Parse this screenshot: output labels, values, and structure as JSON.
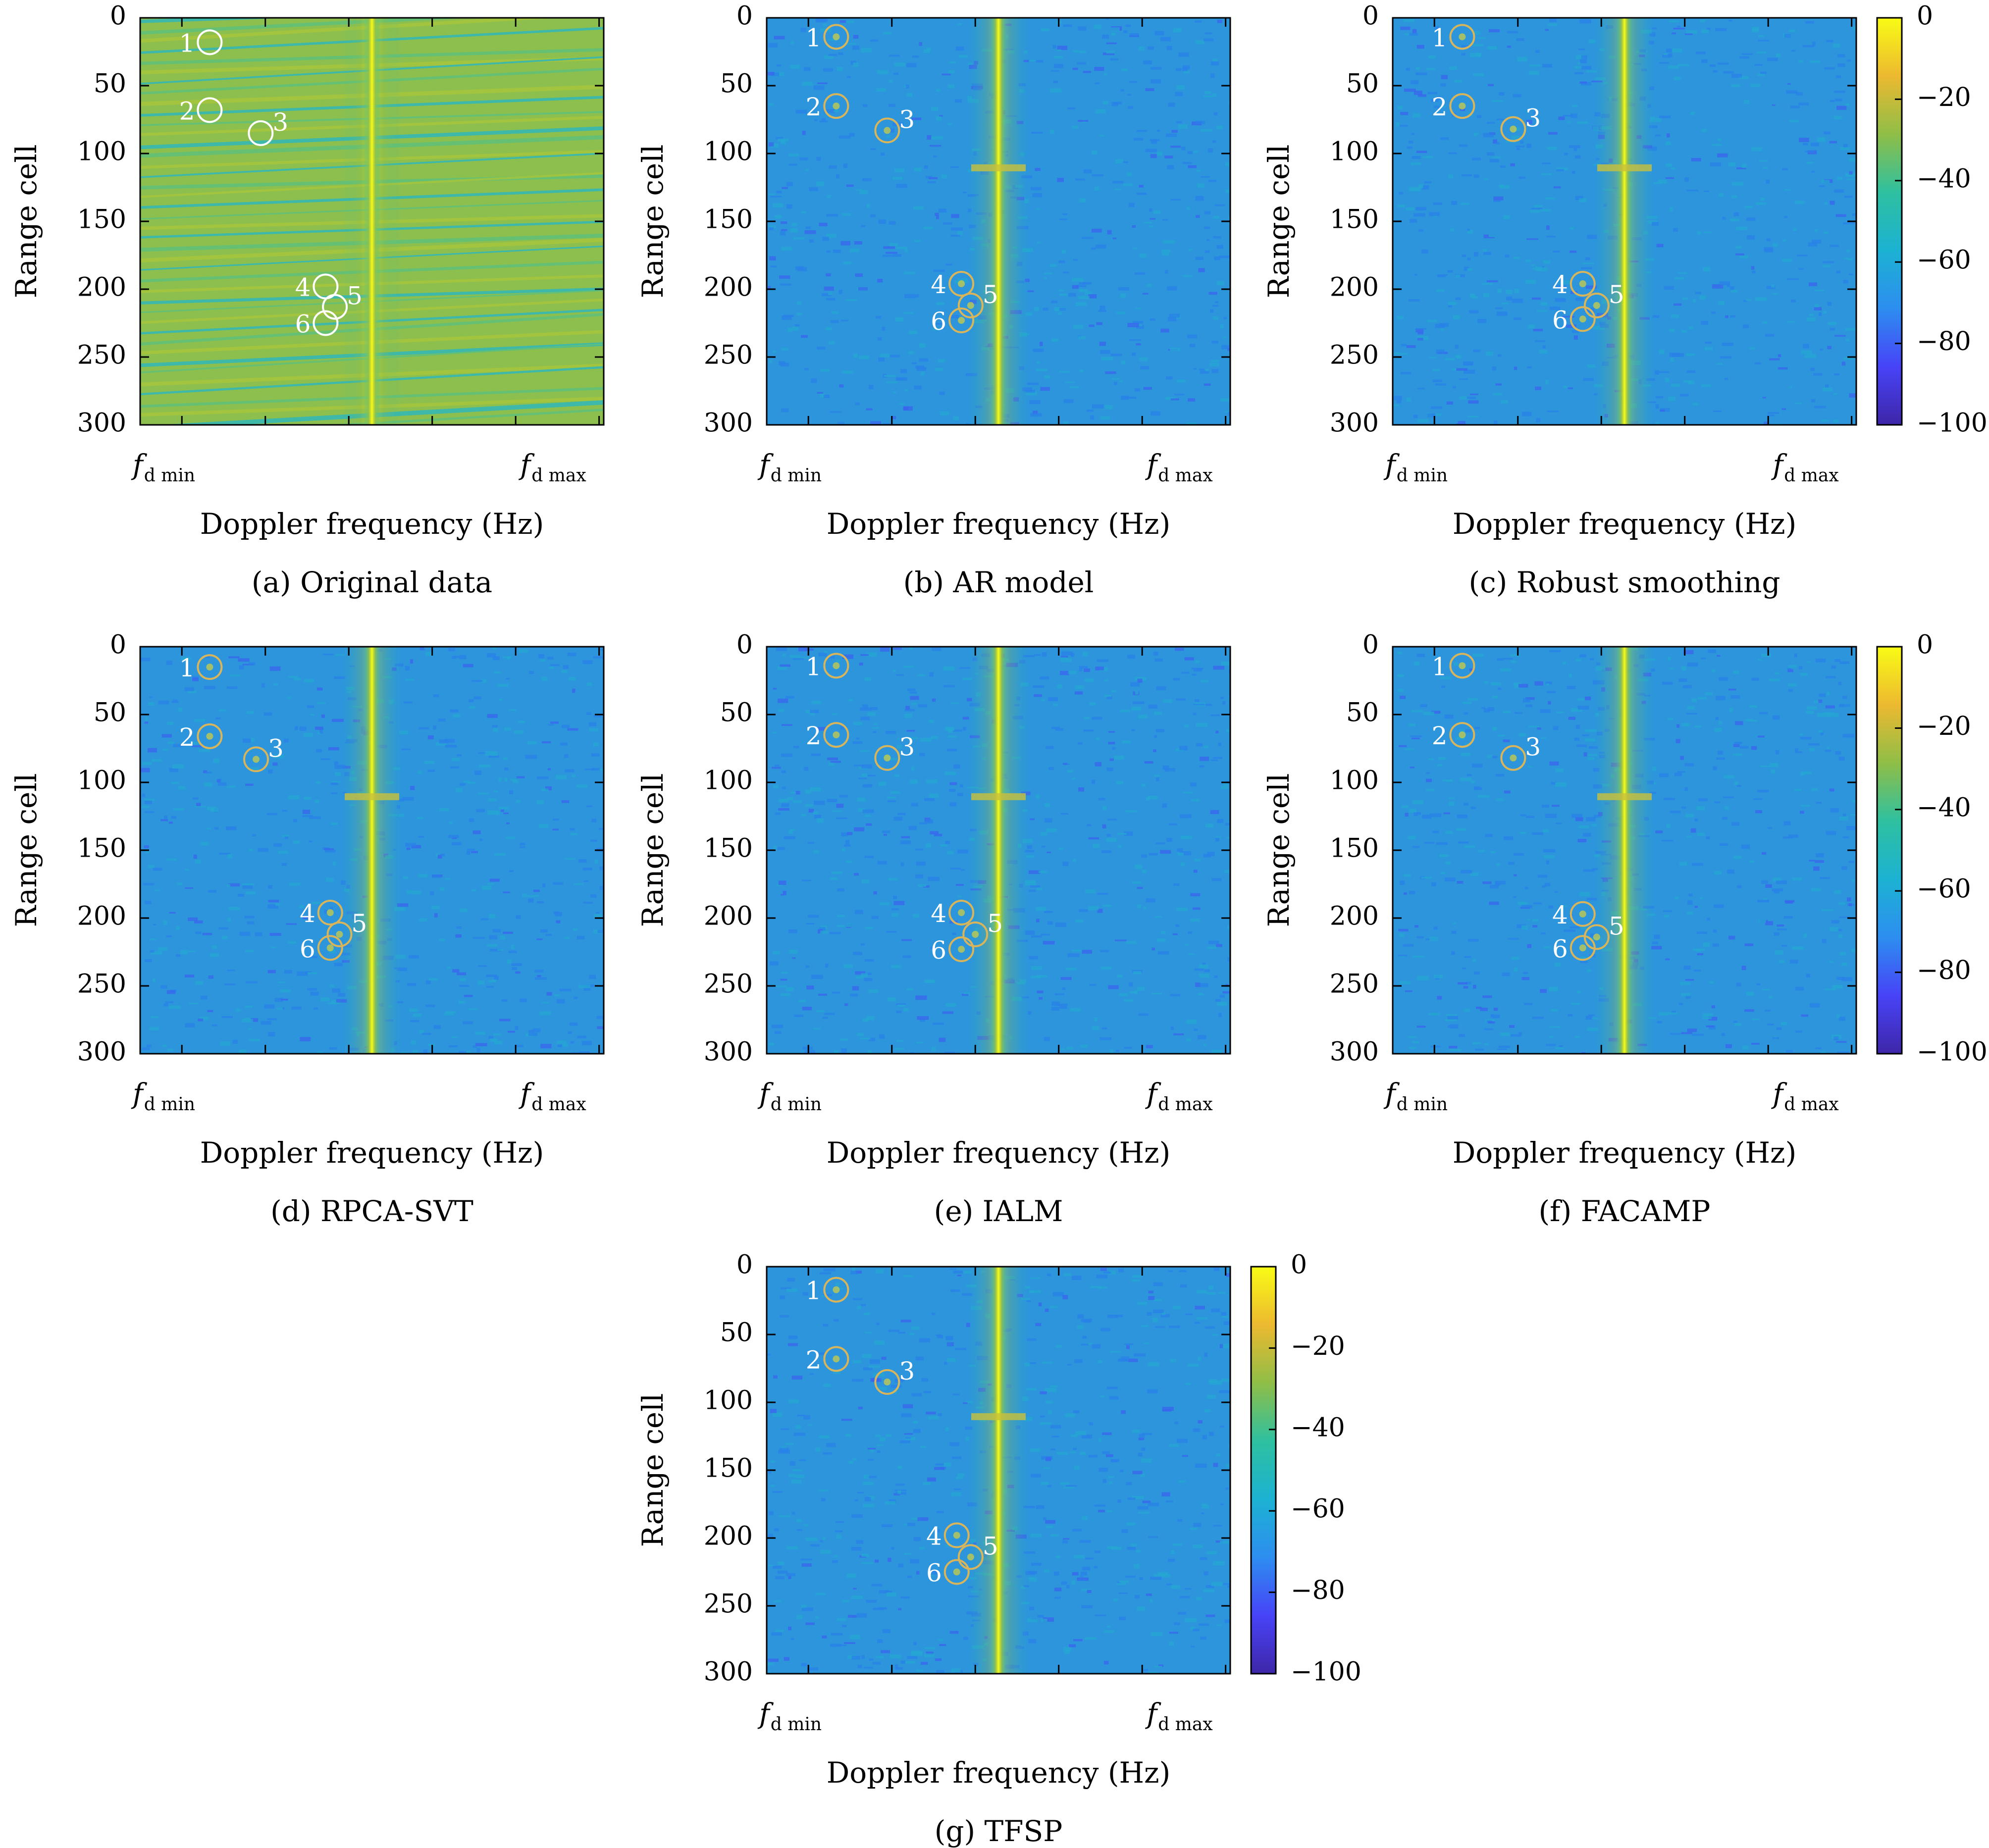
{
  "colors": {
    "colormap": [
      "#3e26a8",
      "#4743f7",
      "#2d8ef0",
      "#1cb2d2",
      "#2ec0a0",
      "#8fbe47",
      "#ecb930",
      "#f9fb15"
    ],
    "marker_white": "#ffffff",
    "marker_gold": "#d8b45a",
    "axis": "#000000"
  },
  "chart_data": [
    {
      "type": "heatmap",
      "caption": "(a) Original data",
      "xlabel": "Doppler frequency (Hz)",
      "ylabel": "Range cell",
      "xticks": [
        {
          "main": "f",
          "sub": "d min"
        },
        {
          "main": "f",
          "sub": "d max"
        }
      ],
      "yticks": [
        0,
        50,
        100,
        150,
        200,
        250,
        300
      ],
      "ylim": [
        0,
        300
      ],
      "y_inverted": true,
      "background": "stripes",
      "clutter_ridge_x": 0.5,
      "marker_style": "white",
      "targets": [
        {
          "label": "1",
          "x": 0.15,
          "y": 18
        },
        {
          "label": "2",
          "x": 0.15,
          "y": 68
        },
        {
          "label": "3",
          "x": 0.26,
          "y": 85
        },
        {
          "label": "4",
          "x": 0.4,
          "y": 198
        },
        {
          "label": "5",
          "x": 0.42,
          "y": 213
        },
        {
          "label": "6",
          "x": 0.4,
          "y": 225
        }
      ]
    },
    {
      "type": "heatmap",
      "caption": "(b) AR model",
      "xlabel": "Doppler frequency (Hz)",
      "ylabel": "Range cell",
      "xticks": [
        {
          "main": "f",
          "sub": "d min"
        },
        {
          "main": "f",
          "sub": "d max"
        }
      ],
      "yticks": [
        0,
        50,
        100,
        150,
        200,
        250,
        300
      ],
      "ylim": [
        0,
        300
      ],
      "y_inverted": true,
      "background": "noise",
      "clutter_ridge_x": 0.5,
      "marker_style": "gold",
      "targets": [
        {
          "label": "1",
          "x": 0.15,
          "y": 14
        },
        {
          "label": "2",
          "x": 0.15,
          "y": 65
        },
        {
          "label": "3",
          "x": 0.26,
          "y": 83
        },
        {
          "label": "4",
          "x": 0.42,
          "y": 196
        },
        {
          "label": "5",
          "x": 0.44,
          "y": 212
        },
        {
          "label": "6",
          "x": 0.42,
          "y": 223
        }
      ]
    },
    {
      "type": "heatmap",
      "caption": "(c) Robust smoothing",
      "xlabel": "Doppler frequency (Hz)",
      "ylabel": "Range cell",
      "xticks": [
        {
          "main": "f",
          "sub": "d min"
        },
        {
          "main": "f",
          "sub": "d max"
        }
      ],
      "yticks": [
        0,
        50,
        100,
        150,
        200,
        250,
        300
      ],
      "ylim": [
        0,
        300
      ],
      "y_inverted": true,
      "background": "noise",
      "clutter_ridge_x": 0.5,
      "marker_style": "gold",
      "targets": [
        {
          "label": "1",
          "x": 0.15,
          "y": 14
        },
        {
          "label": "2",
          "x": 0.15,
          "y": 65
        },
        {
          "label": "3",
          "x": 0.26,
          "y": 82
        },
        {
          "label": "4",
          "x": 0.41,
          "y": 196
        },
        {
          "label": "5",
          "x": 0.44,
          "y": 212
        },
        {
          "label": "6",
          "x": 0.41,
          "y": 222
        }
      ],
      "colorbar": {
        "ticks": [
          0,
          -20,
          -40,
          -60,
          -80,
          -100
        ],
        "range": [
          -100,
          0
        ]
      }
    },
    {
      "type": "heatmap",
      "caption": "(d) RPCA-SVT",
      "xlabel": "Doppler frequency (Hz)",
      "ylabel": "Range cell",
      "xticks": [
        {
          "main": "f",
          "sub": "d min"
        },
        {
          "main": "f",
          "sub": "d max"
        }
      ],
      "yticks": [
        0,
        50,
        100,
        150,
        200,
        250,
        300
      ],
      "ylim": [
        0,
        300
      ],
      "y_inverted": true,
      "background": "noise",
      "clutter_ridge_x": 0.5,
      "marker_style": "gold",
      "targets": [
        {
          "label": "1",
          "x": 0.15,
          "y": 15
        },
        {
          "label": "2",
          "x": 0.15,
          "y": 66
        },
        {
          "label": "3",
          "x": 0.25,
          "y": 83
        },
        {
          "label": "4",
          "x": 0.41,
          "y": 196
        },
        {
          "label": "5",
          "x": 0.43,
          "y": 212
        },
        {
          "label": "6",
          "x": 0.41,
          "y": 222
        }
      ]
    },
    {
      "type": "heatmap",
      "caption": "(e) IALM",
      "xlabel": "Doppler frequency (Hz)",
      "ylabel": "Range cell",
      "xticks": [
        {
          "main": "f",
          "sub": "d min"
        },
        {
          "main": "f",
          "sub": "d max"
        }
      ],
      "yticks": [
        0,
        50,
        100,
        150,
        200,
        250,
        300
      ],
      "ylim": [
        0,
        300
      ],
      "y_inverted": true,
      "background": "noise",
      "clutter_ridge_x": 0.5,
      "marker_style": "gold",
      "targets": [
        {
          "label": "1",
          "x": 0.15,
          "y": 14
        },
        {
          "label": "2",
          "x": 0.15,
          "y": 65
        },
        {
          "label": "3",
          "x": 0.26,
          "y": 82
        },
        {
          "label": "4",
          "x": 0.42,
          "y": 196
        },
        {
          "label": "5",
          "x": 0.45,
          "y": 212
        },
        {
          "label": "6",
          "x": 0.42,
          "y": 223
        }
      ]
    },
    {
      "type": "heatmap",
      "caption": "(f) FACAMP",
      "xlabel": "Doppler frequency (Hz)",
      "ylabel": "Range cell",
      "xticks": [
        {
          "main": "f",
          "sub": "d min"
        },
        {
          "main": "f",
          "sub": "d max"
        }
      ],
      "yticks": [
        0,
        50,
        100,
        150,
        200,
        250,
        300
      ],
      "ylim": [
        0,
        300
      ],
      "y_inverted": true,
      "background": "noise",
      "clutter_ridge_x": 0.5,
      "marker_style": "gold",
      "targets": [
        {
          "label": "1",
          "x": 0.15,
          "y": 14
        },
        {
          "label": "2",
          "x": 0.15,
          "y": 65
        },
        {
          "label": "3",
          "x": 0.26,
          "y": 82
        },
        {
          "label": "4",
          "x": 0.41,
          "y": 197
        },
        {
          "label": "5",
          "x": 0.44,
          "y": 214
        },
        {
          "label": "6",
          "x": 0.41,
          "y": 222
        }
      ],
      "colorbar": {
        "ticks": [
          0,
          -20,
          -40,
          -60,
          -80,
          -100
        ],
        "range": [
          -100,
          0
        ]
      }
    },
    {
      "type": "heatmap",
      "caption": "(g) TFSP",
      "xlabel": "Doppler frequency (Hz)",
      "ylabel": "Range cell",
      "xticks": [
        {
          "main": "f",
          "sub": "d min"
        },
        {
          "main": "f",
          "sub": "d max"
        }
      ],
      "yticks": [
        0,
        50,
        100,
        150,
        200,
        250,
        300
      ],
      "ylim": [
        0,
        300
      ],
      "y_inverted": true,
      "background": "noise",
      "clutter_ridge_x": 0.5,
      "marker_style": "gold",
      "targets": [
        {
          "label": "1",
          "x": 0.15,
          "y": 17
        },
        {
          "label": "2",
          "x": 0.15,
          "y": 68
        },
        {
          "label": "3",
          "x": 0.26,
          "y": 85
        },
        {
          "label": "4",
          "x": 0.41,
          "y": 198
        },
        {
          "label": "5",
          "x": 0.44,
          "y": 214
        },
        {
          "label": "6",
          "x": 0.41,
          "y": 225
        }
      ],
      "colorbar": {
        "ticks": [
          0,
          -20,
          -40,
          -60,
          -80,
          -100
        ],
        "range": [
          -100,
          0
        ]
      }
    }
  ]
}
